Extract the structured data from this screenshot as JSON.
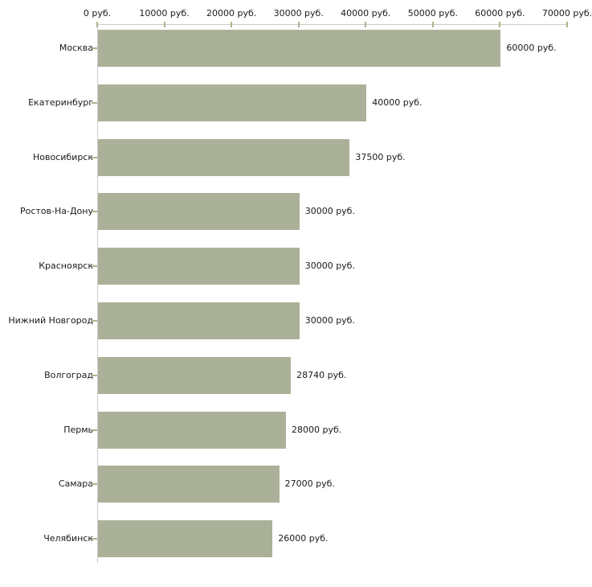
{
  "chart_data": {
    "type": "bar",
    "orientation": "horizontal",
    "title": "",
    "xlabel": "",
    "ylabel": "",
    "unit": "руб.",
    "categories": [
      "Москва",
      "Екатеринбург",
      "Новосибирск",
      "Ростов-На-Дону",
      "Красноярск",
      "Нижний Новгород",
      "Волгоград",
      "Пермь",
      "Самара",
      "Челябинск"
    ],
    "values": [
      60000,
      40000,
      37500,
      30000,
      30000,
      30000,
      28740,
      28000,
      27000,
      26000
    ],
    "value_labels": [
      "60000 руб.",
      "40000 руб.",
      "37500 руб.",
      "30000 руб.",
      "30000 руб.",
      "30000 руб.",
      "28740 руб.",
      "28000 руб.",
      "27000 руб.",
      "26000 руб."
    ],
    "x_tick_labels": [
      "0 руб.",
      "10000 руб.",
      "20000 руб.",
      "30000 руб.",
      "40000 руб.",
      "50000 руб.",
      "60000 руб.",
      "70000 руб."
    ],
    "x_tick_values": [
      0,
      10000,
      20000,
      30000,
      40000,
      50000,
      60000,
      70000
    ],
    "xlim": [
      0,
      70000
    ],
    "grid": false,
    "legend": false,
    "axis_position": "top",
    "colors": {
      "bar": "#abb198",
      "axis_line": "#cccccc",
      "tick_mark": "#b2af8c",
      "text": "#1a1a1a",
      "background": "#ffffff"
    }
  }
}
